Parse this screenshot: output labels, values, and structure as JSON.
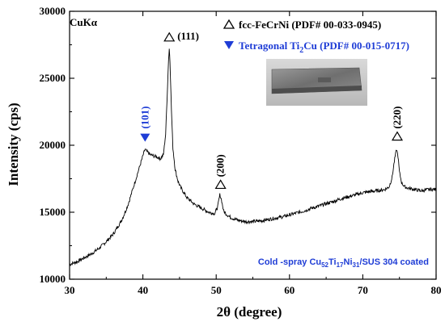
{
  "chart_data": {
    "type": "line",
    "xlabel": "2θ (degree)",
    "ylabel": "Intensity (cps)",
    "xlim": [
      30,
      80
    ],
    "ylim": [
      10000,
      30000
    ],
    "xticks": [
      "30",
      "40",
      "50",
      "60",
      "70",
      "80"
    ],
    "yticks": [
      "10000",
      "15000",
      "20000",
      "25000",
      "30000"
    ],
    "radiation": "CuKα",
    "legend": {
      "placement": "top-right",
      "entries": [
        {
          "symbol": "open-triangle-up",
          "color": "#000000",
          "label": "fcc-FeCrNi (PDF# 00-033-0945)"
        },
        {
          "symbol": "filled-triangle-down",
          "color": "#1f3dd6",
          "label_main": "Tetragonal Ti",
          "label_sub": "2",
          "label_tail": "Cu (PDF# 00-015-0717)"
        }
      ]
    },
    "peak_labels": [
      {
        "label": "(101)",
        "x": 40.3,
        "y": 19900,
        "marker": "filled-triangle-down",
        "color": "#1f3dd6"
      },
      {
        "label": "(111)",
        "x": 43.6,
        "y": 27300,
        "marker": "open-triangle-up",
        "color": "#000000"
      },
      {
        "label": "(200)",
        "x": 50.6,
        "y": 16300,
        "marker": "open-triangle-up",
        "color": "#000000"
      },
      {
        "label": "(220)",
        "x": 74.7,
        "y": 19900,
        "marker": "open-triangle-up",
        "color": "#000000"
      }
    ],
    "caption": {
      "prefix": "Cold -spray Cu",
      "s1": "52",
      "m1": "Ti",
      "s2": "17",
      "m2": "Ni",
      "s3": "31",
      "suffix": "/SUS 304 coated",
      "color": "#1f3dd6"
    },
    "series": [
      {
        "color": "#000000",
        "x": [
          30,
          31,
          32,
          33,
          34,
          35,
          36,
          37,
          37.5,
          38,
          38.5,
          39,
          39.5,
          40,
          40.3,
          40.6,
          41,
          41.5,
          42,
          42.4,
          42.8,
          43.1,
          43.3,
          43.5,
          43.6,
          43.7,
          43.9,
          44.1,
          44.4,
          44.8,
          45.2,
          46,
          47,
          48,
          49,
          49.8,
          50.2,
          50.5,
          50.7,
          51,
          51.5,
          52,
          53,
          54,
          55,
          56,
          57,
          58,
          59,
          60,
          61,
          62,
          63,
          64,
          65,
          66,
          67,
          68,
          69,
          70,
          71,
          72,
          73,
          73.6,
          74,
          74.3,
          74.6,
          74.8,
          75,
          75.3,
          75.7,
          76.2,
          77,
          78,
          79,
          80
        ],
        "y": [
          11100,
          11300,
          11600,
          11900,
          12300,
          12800,
          13400,
          14300,
          14900,
          15600,
          16500,
          17400,
          18300,
          19200,
          19700,
          19500,
          19300,
          19200,
          19100,
          19000,
          19300,
          20800,
          23500,
          26400,
          27200,
          26300,
          22600,
          19800,
          18200,
          17300,
          16800,
          16100,
          15600,
          15300,
          15000,
          14900,
          15400,
          16300,
          16000,
          15100,
          14800,
          14600,
          14400,
          14300,
          14300,
          14350,
          14450,
          14550,
          14650,
          14800,
          14950,
          15100,
          15300,
          15450,
          15650,
          15800,
          16000,
          16150,
          16300,
          16450,
          16550,
          16600,
          16700,
          16900,
          17600,
          18800,
          19700,
          19200,
          18000,
          17200,
          16900,
          16800,
          16700,
          16600,
          16700,
          16700
        ]
      }
    ]
  }
}
